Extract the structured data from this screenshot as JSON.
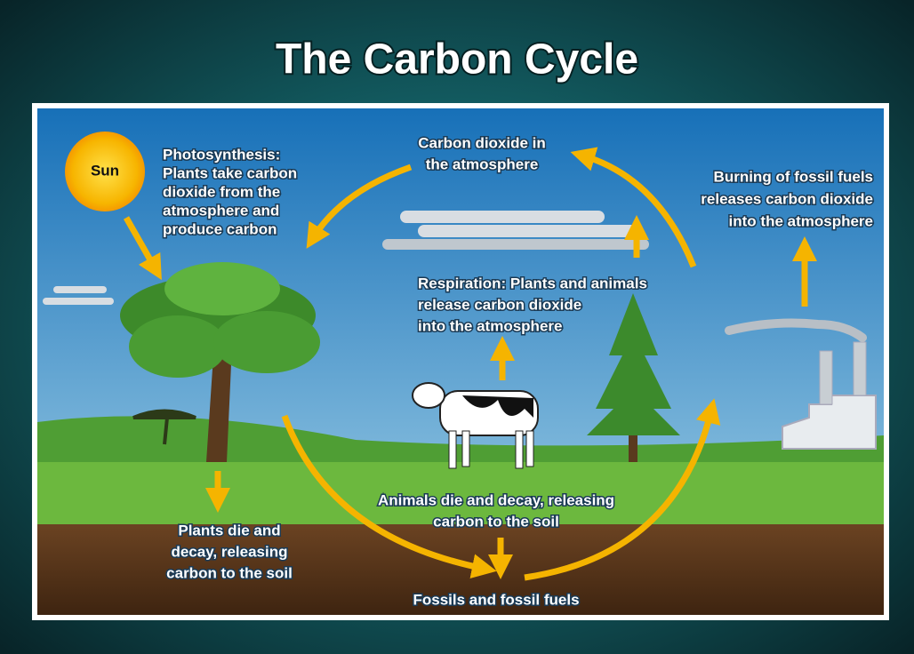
{
  "title": "The Carbon Cycle",
  "sun": "Sun",
  "labels": {
    "photosynthesis": [
      "Photosynthesis:",
      "Plants take carbon",
      "dioxide from the",
      "atmosphere and",
      "produce carbon"
    ],
    "atmosphere": [
      "Carbon dioxide in",
      "the atmosphere"
    ],
    "burning": [
      "Burning of fossil fuels",
      "releases carbon dioxide",
      "into the atmosphere"
    ],
    "respiration": [
      "Respiration: Plants and animals",
      "release carbon dioxide",
      "into the atmosphere"
    ],
    "animals_decay": [
      "Animals die and decay, releasing",
      "carbon to the soil"
    ],
    "plants_decay": [
      "Plants die and",
      "decay, releasing",
      "carbon to the soil"
    ],
    "fossils": [
      "Fossils and fossil fuels"
    ]
  }
}
